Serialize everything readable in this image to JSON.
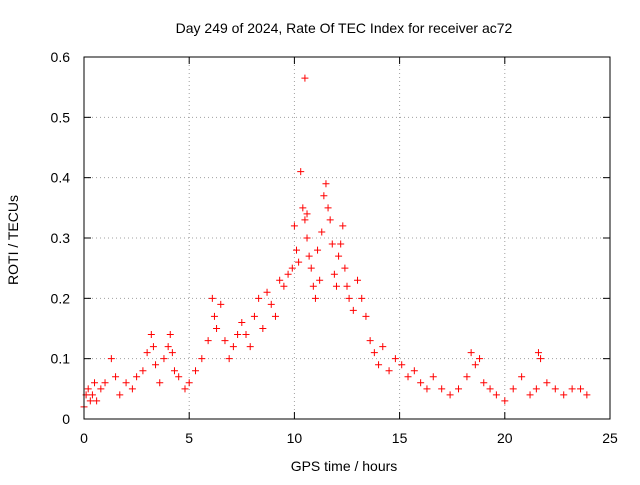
{
  "chart_data": {
    "type": "scatter",
    "title": "Day 249 of 2024, Rate Of TEC Index for receiver ac72",
    "xlabel": "GPS time / hours",
    "ylabel": "ROTI / TECUs",
    "xlim": [
      0,
      25
    ],
    "ylim": [
      0,
      0.6
    ],
    "xticks": [
      0,
      5,
      10,
      15,
      20,
      25
    ],
    "yticks": [
      0,
      0.1,
      0.2,
      0.3,
      0.4,
      0.5,
      0.6
    ],
    "xtick_labels": [
      "0",
      "5",
      "10",
      "15",
      "20",
      "25"
    ],
    "ytick_labels": [
      "0",
      "0.1",
      "0.2",
      "0.3",
      "0.4",
      "0.5",
      "0.6"
    ],
    "grid": true,
    "marker": "plus",
    "color": "#ff0000",
    "series": [
      {
        "x": [
          0.0,
          0.1,
          0.2,
          0.3,
          0.4,
          0.5,
          0.6,
          0.8,
          1.0,
          1.3,
          1.5,
          1.7,
          2.0,
          2.3,
          2.5,
          2.8,
          3.0,
          3.2,
          3.3,
          3.4,
          3.6,
          3.8,
          4.0,
          4.1,
          4.2,
          4.3,
          4.5,
          4.8,
          5.0,
          5.3,
          5.6,
          5.9,
          6.1,
          6.2,
          6.3,
          6.5,
          6.7,
          6.9,
          7.1,
          7.3,
          7.5,
          7.7,
          7.9,
          8.1,
          8.3,
          8.5,
          8.7,
          8.9,
          9.1,
          9.3,
          9.5,
          9.7,
          9.9,
          10.0,
          10.1,
          10.2,
          10.3,
          10.4,
          10.5,
          10.5,
          10.6,
          10.6,
          10.7,
          10.8,
          10.9,
          11.0,
          11.1,
          11.2,
          11.3,
          11.4,
          11.5,
          11.6,
          11.7,
          11.8,
          11.9,
          12.0,
          12.1,
          12.2,
          12.3,
          12.4,
          12.5,
          12.6,
          12.8,
          13.0,
          13.2,
          13.4,
          13.6,
          13.8,
          14.0,
          14.2,
          14.5,
          14.8,
          15.1,
          15.4,
          15.7,
          16.0,
          16.3,
          16.6,
          17.0,
          17.4,
          17.8,
          18.2,
          18.4,
          18.6,
          18.8,
          19.0,
          19.3,
          19.6,
          20.0,
          20.4,
          20.8,
          21.2,
          21.5,
          21.6,
          21.7,
          22.0,
          22.4,
          22.8,
          23.2,
          23.6,
          23.9
        ],
        "y": [
          0.02,
          0.04,
          0.05,
          0.03,
          0.04,
          0.06,
          0.03,
          0.05,
          0.06,
          0.1,
          0.07,
          0.04,
          0.06,
          0.05,
          0.07,
          0.08,
          0.11,
          0.14,
          0.12,
          0.09,
          0.06,
          0.1,
          0.12,
          0.14,
          0.11,
          0.08,
          0.07,
          0.05,
          0.06,
          0.08,
          0.1,
          0.13,
          0.2,
          0.17,
          0.15,
          0.19,
          0.13,
          0.1,
          0.12,
          0.14,
          0.16,
          0.14,
          0.12,
          0.17,
          0.2,
          0.15,
          0.21,
          0.19,
          0.17,
          0.23,
          0.22,
          0.24,
          0.25,
          0.32,
          0.28,
          0.26,
          0.41,
          0.35,
          0.33,
          0.565,
          0.34,
          0.3,
          0.27,
          0.25,
          0.22,
          0.2,
          0.28,
          0.23,
          0.31,
          0.37,
          0.39,
          0.35,
          0.33,
          0.29,
          0.24,
          0.22,
          0.27,
          0.29,
          0.32,
          0.25,
          0.22,
          0.2,
          0.18,
          0.23,
          0.2,
          0.17,
          0.13,
          0.11,
          0.09,
          0.12,
          0.08,
          0.1,
          0.09,
          0.07,
          0.08,
          0.06,
          0.05,
          0.07,
          0.05,
          0.04,
          0.05,
          0.07,
          0.11,
          0.09,
          0.1,
          0.06,
          0.05,
          0.04,
          0.03,
          0.05,
          0.07,
          0.04,
          0.05,
          0.11,
          0.1,
          0.06,
          0.05,
          0.04,
          0.05,
          0.05,
          0.04
        ]
      }
    ]
  }
}
